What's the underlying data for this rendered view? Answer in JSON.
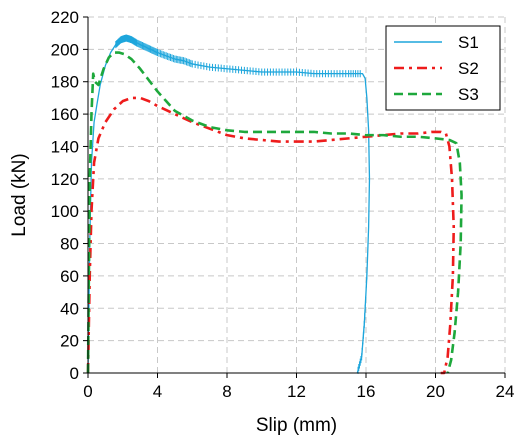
{
  "chart_data": {
    "type": "line",
    "xlabel": "Slip (mm)",
    "ylabel": "Load (kN)",
    "xlim": [
      0,
      24
    ],
    "ylim": [
      0,
      220
    ],
    "xticks": [
      0,
      4,
      8,
      12,
      16,
      20,
      24
    ],
    "yticks": [
      0,
      20,
      40,
      60,
      80,
      100,
      120,
      140,
      160,
      180,
      200,
      220
    ],
    "grid": "dashed",
    "legend_position": "top-right",
    "series": [
      {
        "name": "S1",
        "color": "#1ea6dc",
        "style": "solid",
        "x": [
          0,
          0.05,
          0.1,
          0.2,
          0.35,
          0.5,
          0.7,
          1.0,
          1.3,
          1.6,
          1.9,
          2.2,
          2.5,
          2.8,
          3.2,
          3.6,
          4.0,
          4.5,
          5.0,
          5.5,
          6.0,
          7.0,
          8.0,
          9.0,
          10.0,
          11.0,
          12.0,
          13.0,
          14.0,
          15.0,
          15.8,
          15.95,
          16.05,
          16.15,
          16.2,
          16.15,
          16.05,
          15.9,
          15.75,
          15.5
        ],
        "y": [
          0,
          40,
          80,
          130,
          155,
          165,
          178,
          190,
          198,
          203,
          206,
          207,
          206,
          204,
          202,
          200,
          198,
          196,
          194,
          193,
          191,
          189,
          188,
          187,
          186,
          186,
          186,
          185,
          185,
          185,
          185,
          182,
          170,
          150,
          120,
          90,
          60,
          30,
          10,
          0
        ]
      },
      {
        "name": "S2",
        "color": "#ee1c1c",
        "style": "dashdot",
        "x": [
          0,
          0.05,
          0.1,
          0.2,
          0.35,
          0.6,
          1.0,
          1.5,
          2.0,
          2.5,
          3.0,
          3.5,
          4.0,
          5.0,
          6.0,
          7.0,
          8.0,
          9.0,
          10.0,
          11.0,
          12.0,
          13.0,
          14.0,
          15.0,
          16.0,
          17.0,
          18.0,
          19.0,
          19.8,
          20.3,
          20.6,
          20.8,
          20.95,
          21.05,
          21.0,
          20.85,
          20.7,
          20.5,
          20.3
        ],
        "y": [
          0,
          30,
          60,
          100,
          130,
          145,
          155,
          163,
          168,
          170,
          170,
          168,
          165,
          160,
          155,
          151,
          147,
          145,
          144,
          143,
          143,
          143,
          144,
          145,
          146,
          147,
          148,
          148,
          149,
          149,
          148,
          140,
          120,
          90,
          60,
          30,
          10,
          0,
          0
        ]
      },
      {
        "name": "S3",
        "color": "#1ea83c",
        "style": "dashed",
        "x": [
          0,
          0.05,
          0.1,
          0.2,
          0.3,
          0.4,
          0.6,
          0.9,
          1.2,
          1.5,
          1.8,
          2.1,
          2.5,
          3.0,
          3.5,
          4.0,
          4.5,
          5.0,
          6.0,
          7.0,
          8.0,
          9.0,
          10.0,
          11.0,
          12.0,
          13.0,
          14.0,
          15.0,
          16.0,
          17.0,
          18.0,
          19.0,
          20.0,
          20.8,
          21.2,
          21.4,
          21.5,
          21.45,
          21.3,
          21.1,
          20.9,
          20.7
        ],
        "y": [
          0,
          60,
          120,
          160,
          185,
          180,
          178,
          188,
          195,
          198,
          198,
          197,
          194,
          188,
          181,
          174,
          168,
          162,
          156,
          152,
          150,
          149,
          149,
          149,
          149,
          149,
          148,
          148,
          147,
          147,
          146,
          146,
          145,
          144,
          142,
          130,
          110,
          80,
          50,
          25,
          8,
          0
        ]
      }
    ]
  }
}
